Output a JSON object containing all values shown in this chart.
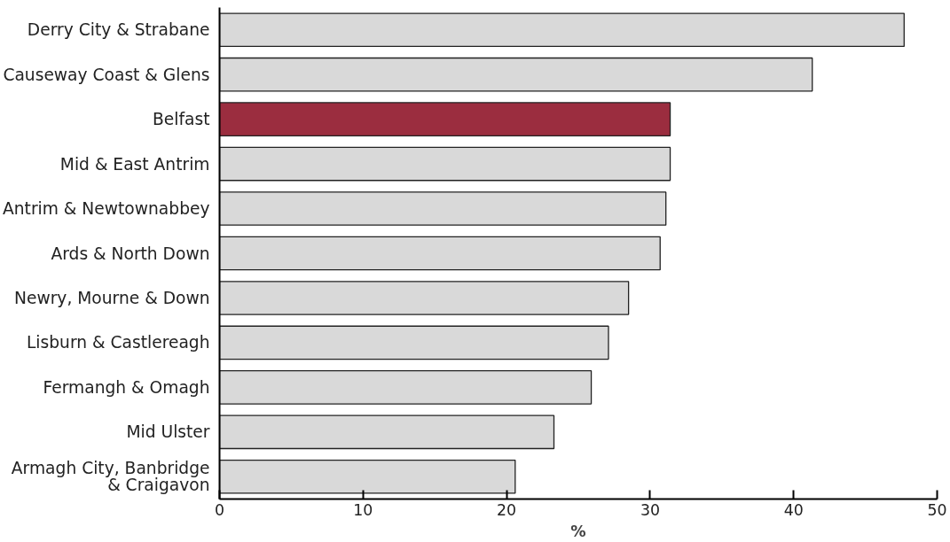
{
  "chart_data": {
    "type": "bar",
    "orientation": "horizontal",
    "xlabel": "%",
    "categories": [
      "Derry City & Strabane",
      "Causeway Coast & Glens",
      "Belfast",
      "Mid & East Antrim",
      "Antrim & Newtownabbey",
      "Ards & North Down",
      "Newry, Mourne & Down",
      "Lisburn & Castlereagh",
      "Fermangh & Omagh",
      "Mid Ulster",
      "Armagh City, Banbridge & Craigavon"
    ],
    "values": [
      47.7,
      41.3,
      31.4,
      31.4,
      31.1,
      30.7,
      28.5,
      27.1,
      25.9,
      23.3,
      20.6
    ],
    "colors": [
      "#d9d9d9",
      "#d9d9d9",
      "#9b2d3f",
      "#d9d9d9",
      "#d9d9d9",
      "#d9d9d9",
      "#d9d9d9",
      "#d9d9d9",
      "#d9d9d9",
      "#d9d9d9",
      "#d9d9d9"
    ],
    "xlim": [
      0,
      50
    ],
    "xticks": [
      0,
      10,
      20,
      30,
      40,
      50
    ],
    "grid": false
  }
}
